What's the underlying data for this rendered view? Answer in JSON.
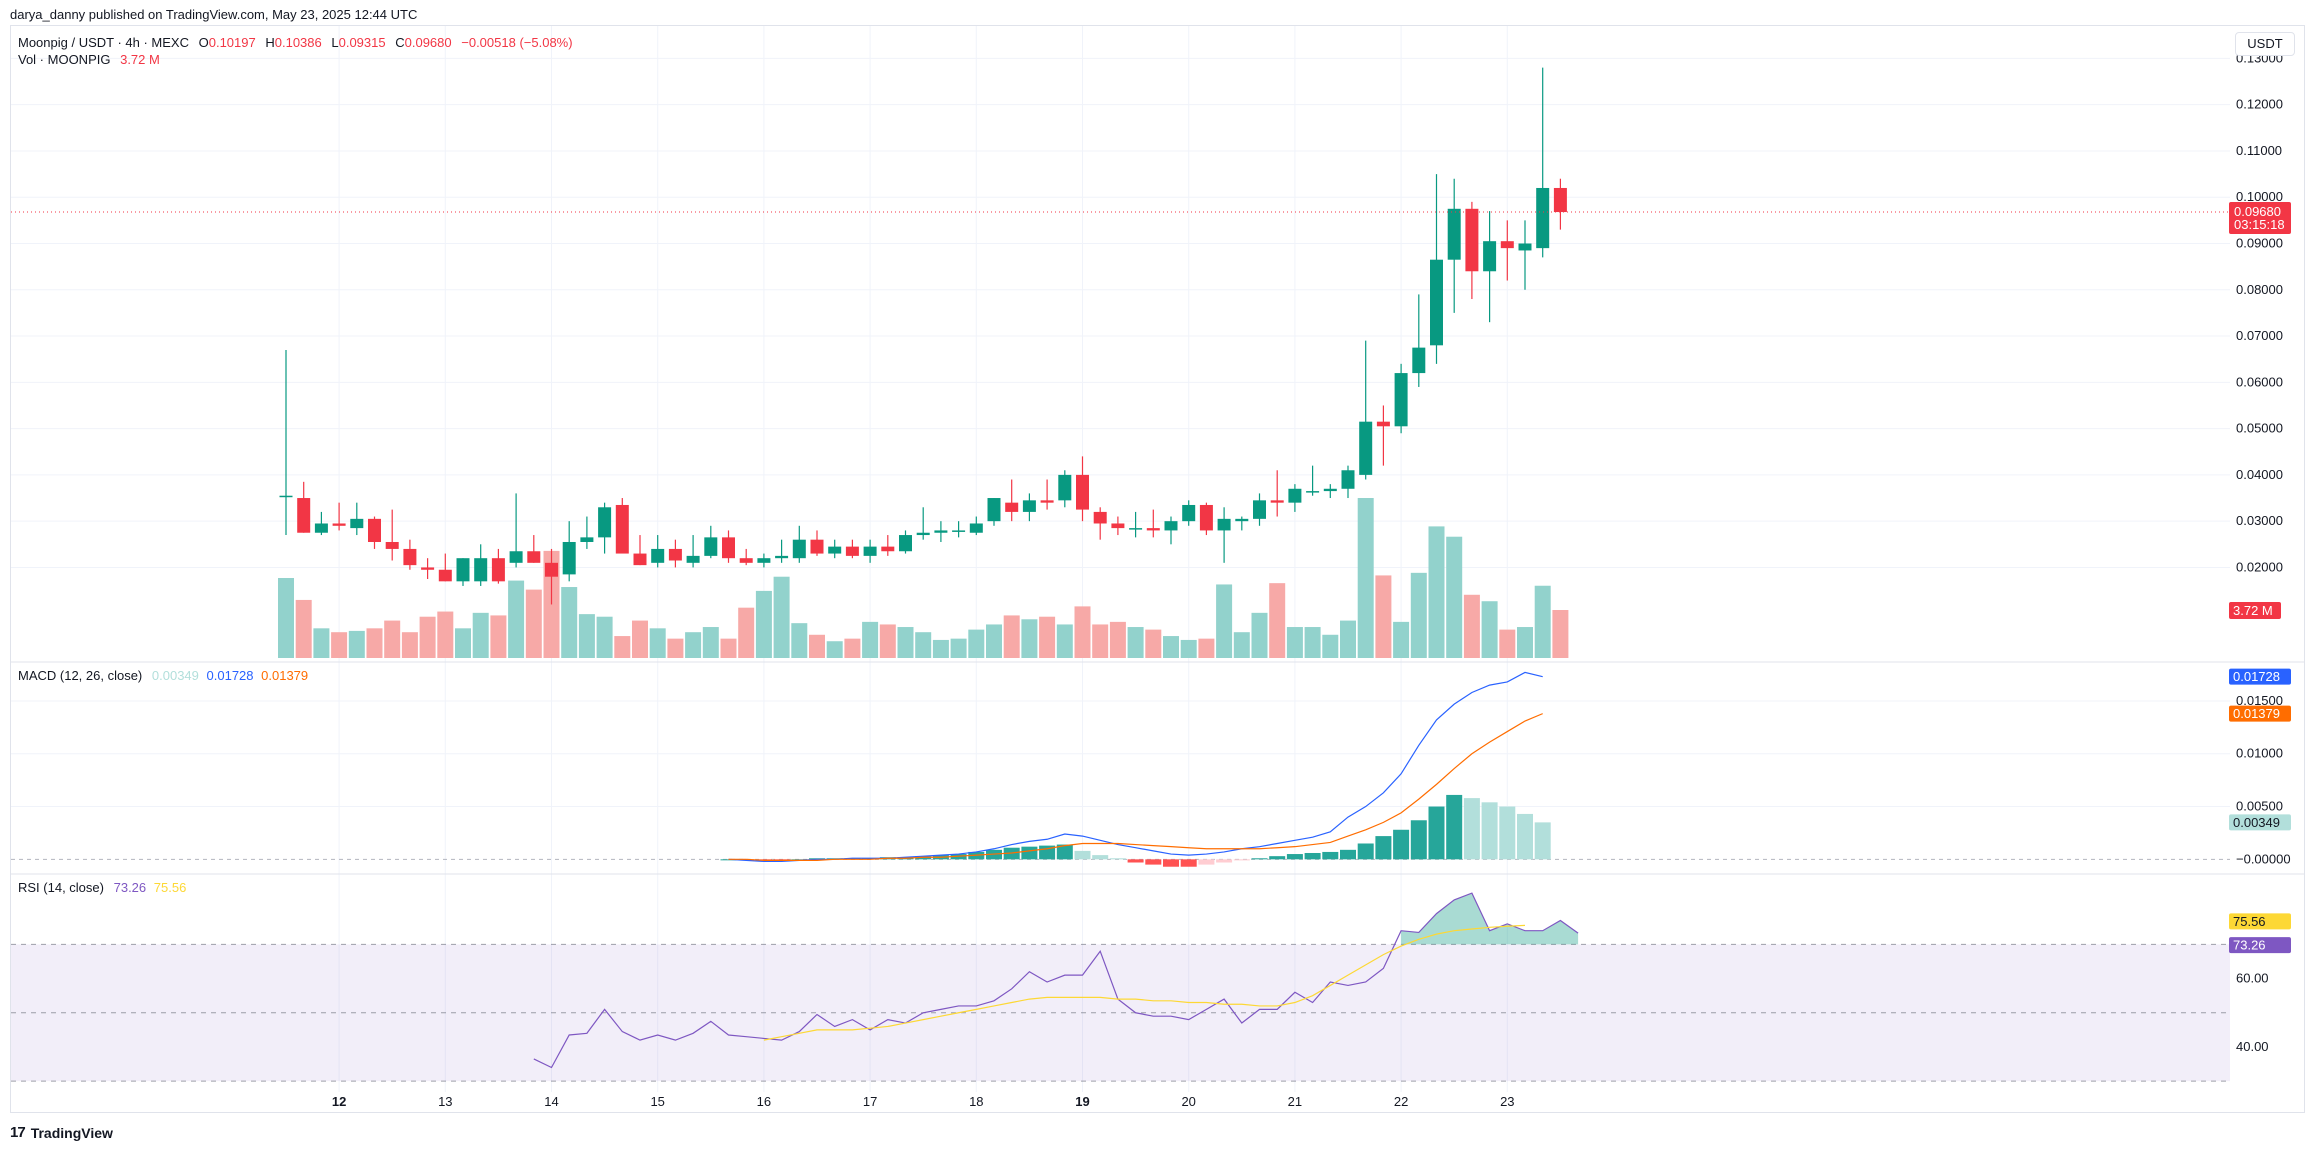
{
  "header": {
    "publisher_line": "darya_danny published on TradingView.com, May 23, 2025 12:44 UTC"
  },
  "footer": {
    "brand": "TradingView",
    "logo_glyph": "17"
  },
  "currency_label": "USDT",
  "legend": {
    "symbol": "Moonpig / USDT · 4h · MEXC",
    "o_label": "O",
    "o_value": "0.10197",
    "h_label": "H",
    "h_value": "0.10386",
    "l_label": "L",
    "l_value": "0.09315",
    "c_label": "C",
    "c_value": "0.09680",
    "change": "−0.00518 (−5.08%)",
    "vol_label": "Vol · MOONPIG",
    "vol_value": "3.72 M",
    "macd_label": "MACD (12, 26, close)",
    "macd_hist": "0.00349",
    "macd_line": "0.01728",
    "macd_signal": "0.01379",
    "rsi_label": "RSI (14, close)",
    "rsi_value": "73.26",
    "rsi_ma": "75.56"
  },
  "colors": {
    "up": "#089981",
    "down": "#f23645",
    "vol_up": "#92d2cc",
    "vol_down": "#f7a9a7",
    "macd_line": "#2962ff",
    "signal_line": "#ff6d00",
    "rsi_line": "#7e57c2",
    "rsi_ma": "#fdd835",
    "grid": "#f0f3fa",
    "text": "#131722"
  },
  "chart_data": [
    {
      "type": "candlestick",
      "title": "Moonpig / USDT · 4h · MEXC",
      "price_axis": {
        "ticks": [
          "0.13000",
          "0.12000",
          "0.11000",
          "0.10000",
          "0.09000",
          "0.08000",
          "0.07000",
          "0.06000",
          "0.05000",
          "0.04000",
          "0.03000",
          "0.02000"
        ],
        "range": [
          0.0,
          0.137
        ]
      },
      "last_price_label": "0.09680",
      "countdown_label": "03:15:18",
      "volume_label": "3.72 M",
      "x_axis": {
        "labels": [
          "12",
          "13",
          "14",
          "15",
          "16",
          "17",
          "18",
          "19",
          "20",
          "21",
          "22",
          "23"
        ],
        "label_bars": [
          3,
          9,
          15,
          21,
          27,
          33,
          39,
          45,
          51,
          57,
          63,
          69
        ],
        "bold_labels": [
          "12",
          "19"
        ]
      },
      "ohlc": [
        [
          0.0355,
          0.067,
          0.027,
          0.0355
        ],
        [
          0.035,
          0.0385,
          0.0275,
          0.0275
        ],
        [
          0.0275,
          0.032,
          0.027,
          0.0295
        ],
        [
          0.0295,
          0.034,
          0.028,
          0.029
        ],
        [
          0.0285,
          0.034,
          0.027,
          0.0305
        ],
        [
          0.0305,
          0.031,
          0.024,
          0.0255
        ],
        [
          0.0255,
          0.0325,
          0.0215,
          0.024
        ],
        [
          0.024,
          0.026,
          0.0195,
          0.0205
        ],
        [
          0.02,
          0.022,
          0.0175,
          0.0195
        ],
        [
          0.0195,
          0.023,
          0.017,
          0.017
        ],
        [
          0.017,
          0.022,
          0.016,
          0.022
        ],
        [
          0.017,
          0.025,
          0.016,
          0.022
        ],
        [
          0.022,
          0.024,
          0.0165,
          0.017
        ],
        [
          0.021,
          0.036,
          0.02,
          0.0235
        ],
        [
          0.0235,
          0.027,
          0.021,
          0.021
        ],
        [
          0.021,
          0.024,
          0.012,
          0.018
        ],
        [
          0.0185,
          0.03,
          0.017,
          0.0255
        ],
        [
          0.0255,
          0.031,
          0.024,
          0.0265
        ],
        [
          0.0265,
          0.034,
          0.023,
          0.033
        ],
        [
          0.0335,
          0.035,
          0.024,
          0.023
        ],
        [
          0.023,
          0.027,
          0.0205,
          0.0205
        ],
        [
          0.021,
          0.027,
          0.02,
          0.024
        ],
        [
          0.024,
          0.026,
          0.02,
          0.0215
        ],
        [
          0.021,
          0.027,
          0.02,
          0.0225
        ],
        [
          0.0225,
          0.029,
          0.022,
          0.0265
        ],
        [
          0.0265,
          0.028,
          0.021,
          0.022
        ],
        [
          0.022,
          0.024,
          0.0205,
          0.021
        ],
        [
          0.021,
          0.023,
          0.02,
          0.022
        ],
        [
          0.022,
          0.026,
          0.021,
          0.0225
        ],
        [
          0.022,
          0.029,
          0.021,
          0.026
        ],
        [
          0.026,
          0.028,
          0.0225,
          0.023
        ],
        [
          0.023,
          0.026,
          0.022,
          0.0245
        ],
        [
          0.0245,
          0.026,
          0.022,
          0.0225
        ],
        [
          0.0225,
          0.026,
          0.021,
          0.0245
        ],
        [
          0.0245,
          0.027,
          0.0225,
          0.0235
        ],
        [
          0.0235,
          0.028,
          0.023,
          0.027
        ],
        [
          0.027,
          0.033,
          0.026,
          0.0275
        ],
        [
          0.0275,
          0.03,
          0.0255,
          0.028
        ],
        [
          0.028,
          0.03,
          0.0265,
          0.028
        ],
        [
          0.0275,
          0.031,
          0.027,
          0.0295
        ],
        [
          0.03,
          0.035,
          0.029,
          0.035
        ],
        [
          0.034,
          0.039,
          0.03,
          0.032
        ],
        [
          0.032,
          0.036,
          0.03,
          0.0345
        ],
        [
          0.0345,
          0.039,
          0.0325,
          0.034
        ],
        [
          0.0345,
          0.041,
          0.033,
          0.04
        ],
        [
          0.04,
          0.044,
          0.03,
          0.0325
        ],
        [
          0.032,
          0.033,
          0.026,
          0.0295
        ],
        [
          0.0295,
          0.031,
          0.027,
          0.0285
        ],
        [
          0.0285,
          0.032,
          0.0265,
          0.0285
        ],
        [
          0.0285,
          0.0325,
          0.0265,
          0.028
        ],
        [
          0.028,
          0.031,
          0.025,
          0.03
        ],
        [
          0.03,
          0.0345,
          0.029,
          0.0335
        ],
        [
          0.0335,
          0.034,
          0.027,
          0.028
        ],
        [
          0.028,
          0.033,
          0.021,
          0.0305
        ],
        [
          0.03,
          0.031,
          0.028,
          0.0305
        ],
        [
          0.0305,
          0.036,
          0.029,
          0.0345
        ],
        [
          0.0345,
          0.041,
          0.031,
          0.034
        ],
        [
          0.034,
          0.038,
          0.032,
          0.037
        ],
        [
          0.0365,
          0.042,
          0.0355,
          0.0365
        ],
        [
          0.0365,
          0.038,
          0.035,
          0.037
        ],
        [
          0.037,
          0.042,
          0.035,
          0.041
        ],
        [
          0.04,
          0.069,
          0.039,
          0.0515
        ],
        [
          0.0515,
          0.055,
          0.042,
          0.0505
        ],
        [
          0.0505,
          0.064,
          0.049,
          0.062
        ],
        [
          0.062,
          0.079,
          0.059,
          0.0675
        ],
        [
          0.068,
          0.105,
          0.064,
          0.0865
        ],
        [
          0.0865,
          0.104,
          0.075,
          0.0975
        ],
        [
          0.0975,
          0.099,
          0.078,
          0.084
        ],
        [
          0.084,
          0.097,
          0.073,
          0.0905
        ],
        [
          0.0905,
          0.095,
          0.082,
          0.089
        ],
        [
          0.0885,
          0.095,
          0.08,
          0.09
        ],
        [
          0.089,
          0.128,
          0.087,
          0.102
        ],
        [
          0.102,
          0.104,
          0.093,
          0.0968
        ]
      ],
      "volume": [
        6200000,
        4500000,
        2300000,
        2000000,
        2100000,
        2300000,
        2900000,
        2000000,
        3200000,
        3600000,
        2300000,
        3500000,
        3300000,
        6000000,
        5300000,
        8300000,
        5500000,
        3400000,
        3200000,
        1700000,
        2900000,
        2300000,
        1500000,
        2000000,
        2400000,
        1500000,
        3900000,
        5200000,
        6300000,
        2700000,
        1800000,
        1300000,
        1500000,
        2800000,
        2600000,
        2400000,
        2000000,
        1400000,
        1500000,
        2200000,
        2600000,
        3300000,
        3000000,
        3200000,
        2600000,
        4000000,
        2600000,
        2800000,
        2400000,
        2200000,
        1700000,
        1400000,
        1500000,
        5700000,
        2000000,
        3500000,
        5800000,
        2400000,
        2400000,
        1800000,
        2900000,
        12400000,
        6400000,
        2800000,
        6600000,
        10200000,
        9400000,
        4900000,
        4400000,
        2200000,
        2400000,
        5600000,
        3720000
      ]
    },
    {
      "type": "bar+line",
      "title": "MACD (12, 26, close)",
      "y_ticks": [
        "0.01500",
        "0.01000",
        "0.00500",
        "−0.00000"
      ],
      "y_range": [
        -0.0012,
        0.0185
      ],
      "start_index": 25,
      "labels": {
        "macd": "0.01728",
        "signal": "0.01379",
        "hist": "0.00349"
      },
      "macd": [
        0.0,
        -0.0001,
        -0.0002,
        -0.0002,
        -0.0001,
        0.0,
        0.0,
        0.0001,
        0.0001,
        0.0001,
        0.0002,
        0.0003,
        0.0004,
        0.0005,
        0.0007,
        0.001,
        0.0014,
        0.0017,
        0.0019,
        0.0024,
        0.0022,
        0.0018,
        0.0014,
        0.0011,
        0.0008,
        0.0005,
        0.0004,
        0.0005,
        0.0007,
        0.001,
        0.0012,
        0.0015,
        0.0018,
        0.0021,
        0.0026,
        0.004,
        0.005,
        0.0063,
        0.0081,
        0.0108,
        0.0132,
        0.0147,
        0.0158,
        0.0165,
        0.0168,
        0.0177,
        0.0173
      ],
      "signal": [
        0.0,
        0.0,
        -0.0001,
        -0.0001,
        -0.0001,
        -0.0001,
        0.0,
        0.0,
        0.0,
        0.0001,
        0.0001,
        0.0002,
        0.0002,
        0.0003,
        0.0004,
        0.0005,
        0.0006,
        0.0008,
        0.001,
        0.0013,
        0.0015,
        0.0015,
        0.0015,
        0.0014,
        0.0013,
        0.0012,
        0.0011,
        0.001,
        0.001,
        0.001,
        0.001,
        0.0011,
        0.0012,
        0.0014,
        0.0016,
        0.0022,
        0.0028,
        0.0035,
        0.0044,
        0.0057,
        0.0071,
        0.0086,
        0.01,
        0.0111,
        0.0121,
        0.0131,
        0.0138
      ],
      "histogram": [
        0.0,
        -0.0001,
        -0.0001,
        -0.0001,
        0.0,
        0.0001,
        0.0001,
        0.0001,
        0.0001,
        0.0002,
        0.0002,
        0.0003,
        0.0004,
        0.0005,
        0.0007,
        0.0009,
        0.0011,
        0.0012,
        0.0013,
        0.0014,
        0.0008,
        0.0004,
        0.0001,
        -0.0003,
        -0.0005,
        -0.0007,
        -0.0007,
        -0.0005,
        -0.0003,
        -0.0001,
        0.0001,
        0.0003,
        0.0005,
        0.0006,
        0.0007,
        0.0009,
        0.0015,
        0.0022,
        0.0028,
        0.0037,
        0.005,
        0.0061,
        0.0058,
        0.0054,
        0.005,
        0.0043,
        0.0035
      ]
    },
    {
      "type": "line",
      "title": "RSI (14, close)",
      "y_ticks": [
        "60.00",
        "40.00"
      ],
      "y_range": [
        28,
        90
      ],
      "bands": {
        "upper": 70,
        "middle": 50,
        "lower": 30
      },
      "labels": {
        "rsi": "73.26",
        "ma": "75.56"
      },
      "rsi_start_index": 14,
      "rsi": [
        36.5,
        34.0,
        43.5,
        44.0,
        51.0,
        44.5,
        42.0,
        43.5,
        42.0,
        44.0,
        47.5,
        43.5,
        43.0,
        42.5,
        42.0,
        44.5,
        49.5,
        46.0,
        48.0,
        45.0,
        48.0,
        47.0,
        50.0,
        51.0,
        52.0,
        52.0,
        53.5,
        57.0,
        62.0,
        59.0,
        61.0,
        61.0,
        68.0,
        54.0,
        50.0,
        49.0,
        49.0,
        48.0,
        51.0,
        54.0,
        47.0,
        51.0,
        51.0,
        56.0,
        53.0,
        59.0,
        58.0,
        59.0,
        63.0,
        74.0,
        73.5,
        79.0,
        83.0,
        85.0,
        74.0,
        76.0,
        74.0,
        74.0,
        77.0,
        73.3
      ],
      "ma_start_index": 27,
      "rsi_ma": [
        42.0,
        43.0,
        44.0,
        45.0,
        45.0,
        45.0,
        45.5,
        46.0,
        47.0,
        48.0,
        49.0,
        50.0,
        51.0,
        52.0,
        53.0,
        54.0,
        54.5,
        54.5,
        54.5,
        54.5,
        54.0,
        54.0,
        53.5,
        53.5,
        53.0,
        53.0,
        52.5,
        52.5,
        52.0,
        52.0,
        53.0,
        55.0,
        58.0,
        61.0,
        64.0,
        67.0,
        69.5,
        71.5,
        73.0,
        74.0,
        74.5,
        75.0,
        75.3,
        75.56
      ]
    }
  ]
}
